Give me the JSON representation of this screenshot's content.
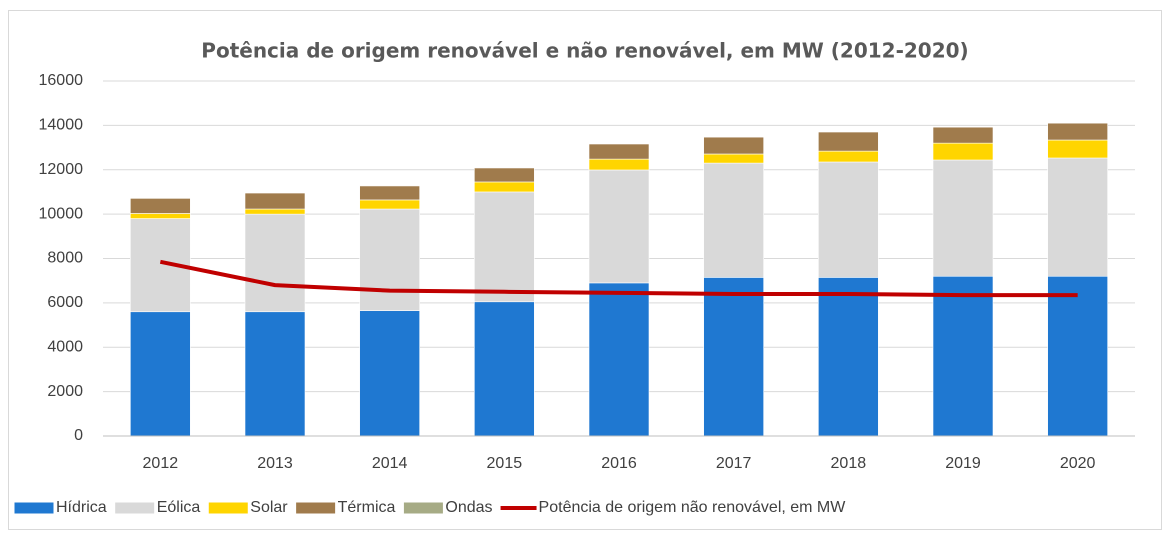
{
  "chart_data": {
    "type": "bar",
    "title": "Potência de origem renovável e não renovável, em MW (2012-2020)",
    "categories": [
      "2012",
      "2013",
      "2014",
      "2015",
      "2016",
      "2017",
      "2018",
      "2019",
      "2020"
    ],
    "stacked": true,
    "series": [
      {
        "name": "Hídrica",
        "color": "#1f78d1",
        "values": [
          5600,
          5600,
          5650,
          6050,
          6900,
          7150,
          7150,
          7200,
          7200
        ]
      },
      {
        "name": "Eólica",
        "color": "#d9d9d9",
        "values": [
          4200,
          4400,
          4580,
          4950,
          5090,
          5150,
          5200,
          5240,
          5330
        ]
      },
      {
        "name": "Solar",
        "color": "#ffd500",
        "values": [
          230,
          230,
          410,
          450,
          490,
          410,
          490,
          760,
          810
        ]
      },
      {
        "name": "Térmica",
        "color": "#a07b4c",
        "values": [
          680,
          720,
          630,
          630,
          680,
          760,
          860,
          720,
          760
        ]
      },
      {
        "name": "Ondas",
        "color": "#a6ab85",
        "values": [
          0,
          0,
          0,
          0,
          0,
          0,
          0,
          0,
          0
        ]
      },
      {
        "name": "Potência de origem não renovável, em MW",
        "type": "line",
        "color": "#c00000",
        "values": [
          7850,
          6800,
          6550,
          6500,
          6450,
          6400,
          6400,
          6350,
          6350
        ]
      }
    ],
    "ylim": [
      0,
      16000
    ],
    "yticks": [
      0,
      2000,
      4000,
      6000,
      8000,
      10000,
      12000,
      14000,
      16000
    ],
    "grid": true,
    "legend": "bottom"
  }
}
